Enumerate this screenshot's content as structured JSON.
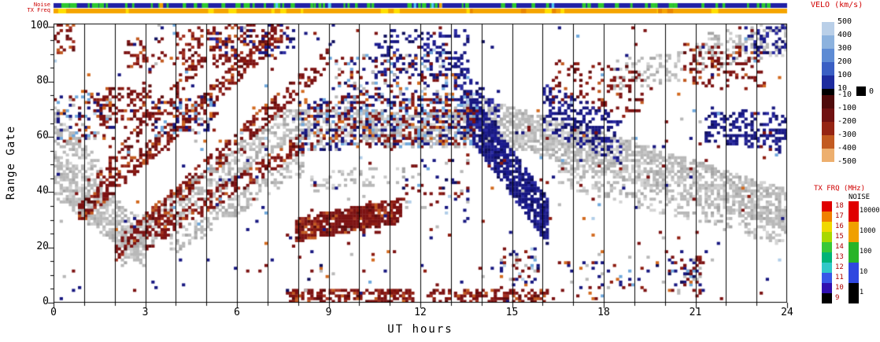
{
  "strips": {
    "noise_label": "Noise",
    "txfreq_label": "TX Freq",
    "noise": {
      "base": "#2020a6",
      "marks": [
        {
          "color": "#2ec82e",
          "count": 80,
          "wmin": 2,
          "wmax": 6
        },
        {
          "color": "#4fc8f0",
          "count": 6,
          "wmin": 2,
          "wmax": 4
        },
        {
          "color": "#f0a000",
          "count": 2,
          "wmin": 3,
          "wmax": 6
        }
      ]
    },
    "txfreq": {
      "base": "#f5a500",
      "marks": [
        {
          "color": "#ffdf00",
          "count": 14,
          "wmin": 3,
          "wmax": 12
        },
        {
          "color": "#e98600",
          "count": 5,
          "wmin": 3,
          "wmax": 9
        }
      ]
    }
  },
  "axes": {
    "x_label": "UT hours",
    "y_label": "Range Gate",
    "x_ticks": [
      0,
      3,
      6,
      9,
      12,
      15,
      18,
      21,
      24
    ],
    "x_tick_labels": [
      "0",
      "3",
      "6",
      "9",
      "12",
      "15",
      "18",
      "21",
      "24"
    ],
    "x_range": [
      0,
      24
    ],
    "y_ticks": [
      0,
      20,
      40,
      60,
      80,
      100
    ],
    "y_tick_labels": [
      "0",
      "20",
      "40",
      "60",
      "80",
      "100"
    ],
    "y_range": [
      0,
      101
    ]
  },
  "colorbars": {
    "velocity": {
      "title": "VELO (km/s)",
      "labels": [
        "500",
        "400",
        "300",
        "200",
        "100",
        "10",
        "-10",
        "-100",
        "-200",
        "-300",
        "-400",
        "-500"
      ],
      "zero_label": "0",
      "zero_box_color": "#000000",
      "pos_segments": [
        "#b9cfe8",
        "#8cb2de",
        "#5d8bd4",
        "#3a5fc4",
        "#1d2b9e"
      ],
      "mid_color": "#000000",
      "neg_segments": [
        "#4f0a0a",
        "#701111",
        "#952413",
        "#c25a20",
        "#edaf6e"
      ]
    },
    "tx_frq": {
      "title": "TX FRQ (MHz)",
      "labels": [
        "18",
        "17",
        "16",
        "15",
        "14",
        "13",
        "12",
        "11",
        "10",
        "9"
      ],
      "label_color": "#b00000",
      "segments": [
        "#e00000",
        "#f08000",
        "#f0d800",
        "#a8d800",
        "#38c838",
        "#00b478",
        "#30c8c8",
        "#3858e8",
        "#3010b0",
        "#000000"
      ]
    },
    "noise": {
      "title": "NOISE",
      "labels": [
        "10000",
        "1000",
        "100",
        "10",
        "1"
      ],
      "label_color": "#000000",
      "segments": [
        "#e00000",
        "#f0a000",
        "#28b428",
        "#3048e0",
        "#000000"
      ]
    }
  },
  "chart_data": {
    "type": "heatmap",
    "title": "",
    "xlabel": "UT hours",
    "ylabel": "Range Gate",
    "xlim": [
      0,
      24
    ],
    "ylim": [
      0,
      101
    ],
    "ground_scatter_color": "#b8b8b8",
    "palette": {
      "gray": [
        "#b8b8b8",
        "#c9c9c9",
        "#a6a6a6",
        "#d4d4d4"
      ],
      "red": [
        "#7c1212",
        "#8e1c10",
        "#5e0c0c",
        "#a33020",
        "#c25a20"
      ],
      "navy": [
        "#171780",
        "#0e0e5c",
        "#2b2ba2",
        "#1a1a90"
      ],
      "mix": [
        "#7c1212",
        "#8e1c10",
        "#171780",
        "#0e0e5c",
        "#6fa8dc",
        "#b0cde8",
        "#d2691e",
        "#b8b8b8"
      ],
      "mix_w": [
        0.26,
        0.08,
        0.24,
        0.06,
        0.12,
        0.06,
        0.08,
        0.1
      ],
      "main_prob": {
        "gray": 0.55,
        "red": 0.6,
        "navy": 0.6
      }
    },
    "features": [
      {
        "t0": 0.0,
        "t1": 3.0,
        "g0": 46,
        "g1": 20,
        "w": 8,
        "d": 0.7,
        "c": "gray"
      },
      {
        "t0": 0.0,
        "t1": 1.6,
        "g0": 64,
        "g1": 42,
        "w": 6,
        "d": 0.45,
        "c": "gray"
      },
      {
        "t0": 2.2,
        "t1": 7.6,
        "g0": 19,
        "g1": 64,
        "w": 6,
        "d": 0.55,
        "c": "gray"
      },
      {
        "t0": 3.8,
        "t1": 8.2,
        "g0": 20,
        "g1": 52,
        "w": 4,
        "d": 0.4,
        "c": "gray"
      },
      {
        "t0": 7.6,
        "t1": 14.2,
        "g0": 63,
        "g1": 62,
        "w": 6,
        "d": 0.45,
        "c": "gray"
      },
      {
        "t0": 14.0,
        "t1": 19.0,
        "g0": 66,
        "g1": 50,
        "w": 7,
        "d": 0.7,
        "c": "gray"
      },
      {
        "t0": 19.0,
        "t1": 24.0,
        "g0": 50,
        "g1": 33,
        "w": 7,
        "d": 0.7,
        "c": "gray"
      },
      {
        "t0": 16.5,
        "t1": 24.0,
        "g0": 46,
        "g1": 24,
        "w": 4,
        "d": 0.35,
        "c": "gray"
      },
      {
        "t0": 8.0,
        "t1": 12.0,
        "g0": 43,
        "g1": 46,
        "w": 3,
        "d": 0.2,
        "c": "gray"
      },
      {
        "t0": 21.0,
        "t1": 24.0,
        "g0": 90,
        "g1": 95,
        "w": 6,
        "d": 0.3,
        "c": "gray"
      },
      {
        "t0": 18.3,
        "t1": 20.6,
        "g0": 82,
        "g1": 85,
        "w": 5,
        "d": 0.28,
        "c": "gray"
      },
      {
        "t0": 0.8,
        "t1": 7.7,
        "g0": 32,
        "g1": 100,
        "w": 3.5,
        "d": 0.5,
        "c": "red"
      },
      {
        "t0": 2.0,
        "t1": 9.0,
        "g0": 18,
        "g1": 88,
        "w": 3.5,
        "d": 0.45,
        "c": "red"
      },
      {
        "t0": 1.3,
        "t1": 4.8,
        "g0": 42,
        "g1": 88,
        "w": 3,
        "d": 0.4,
        "c": "red"
      },
      {
        "t0": 3.0,
        "t1": 8.2,
        "g0": 22,
        "g1": 58,
        "w": 3,
        "d": 0.45,
        "c": "red"
      },
      {
        "t0": 7.9,
        "t1": 11.4,
        "g0": 26,
        "g1": 33,
        "w": 4,
        "d": 0.9,
        "c": "red"
      },
      {
        "t0": 7.6,
        "t1": 11.8,
        "g0": 1,
        "g1": 2,
        "w": 2.5,
        "d": 0.55,
        "c": "red"
      },
      {
        "t0": 12.3,
        "t1": 16.2,
        "g0": 1,
        "g1": 2,
        "w": 2.5,
        "d": 0.45,
        "c": "red"
      },
      {
        "t0": 0.0,
        "t1": 0.7,
        "g0": 95,
        "g1": 96,
        "w": 5,
        "d": 0.45,
        "c": "red"
      },
      {
        "t0": 1.4,
        "t1": 3.2,
        "g0": 70,
        "g1": 73,
        "w": 6,
        "d": 0.4,
        "c": "red"
      },
      {
        "t0": 2.3,
        "t1": 3.7,
        "g0": 89,
        "g1": 91,
        "w": 5,
        "d": 0.22,
        "c": "red"
      },
      {
        "t0": 4.0,
        "t1": 7.2,
        "g0": 91,
        "g1": 94,
        "w": 7,
        "d": 0.28,
        "c": "red"
      },
      {
        "t0": 16.3,
        "t1": 19.3,
        "g0": 80,
        "g1": 76,
        "w": 8,
        "d": 0.18,
        "c": "red"
      },
      {
        "t0": 20.6,
        "t1": 23.2,
        "g0": 86,
        "g1": 84,
        "w": 7,
        "d": 0.25,
        "c": "red"
      },
      {
        "t0": 13.5,
        "t1": 16.2,
        "g0": 68,
        "g1": 28,
        "w": 8,
        "d": 0.85,
        "c": "navy"
      },
      {
        "t0": 13.1,
        "t1": 14.6,
        "g0": 80,
        "g1": 62,
        "w": 8,
        "d": 0.35,
        "c": "navy"
      },
      {
        "t0": 16.0,
        "t1": 18.6,
        "g0": 70,
        "g1": 58,
        "w": 8,
        "d": 0.4,
        "c": "navy"
      },
      {
        "t0": 10.4,
        "t1": 13.6,
        "g0": 90,
        "g1": 90,
        "w": 8,
        "d": 0.25,
        "c": "navy"
      },
      {
        "t0": 21.3,
        "t1": 24.0,
        "g0": 64,
        "g1": 61,
        "w": 6,
        "d": 0.4,
        "c": "navy"
      },
      {
        "t0": 22.6,
        "t1": 24.0,
        "g0": 94,
        "g1": 95,
        "w": 5,
        "d": 0.3,
        "c": "navy"
      },
      {
        "t0": 5.0,
        "t1": 7.9,
        "g0": 92,
        "g1": 96,
        "w": 5,
        "d": 0.15,
        "c": "navy"
      },
      {
        "t0": 8.0,
        "t1": 13.8,
        "g0": 64,
        "g1": 66,
        "w": 9,
        "d": 0.45,
        "c": "mix"
      },
      {
        "t0": 9.0,
        "t1": 13.2,
        "g0": 81,
        "g1": 83,
        "w": 7,
        "d": 0.22,
        "c": "mix"
      },
      {
        "t0": 3.2,
        "t1": 5.3,
        "g0": 66,
        "g1": 68,
        "w": 6,
        "d": 0.3,
        "c": "mix"
      },
      {
        "t0": 0.0,
        "t1": 2.0,
        "g0": 66,
        "g1": 67,
        "w": 8,
        "d": 0.25,
        "c": "mix"
      },
      {
        "t0": 14.6,
        "t1": 15.9,
        "g0": 12,
        "g1": 13,
        "w": 7,
        "d": 0.2,
        "c": "mix"
      },
      {
        "t0": 16.5,
        "t1": 21.3,
        "g0": 8,
        "g1": 9,
        "w": 6,
        "d": 0.1,
        "c": "mix"
      },
      {
        "t0": 20.5,
        "t1": 21.2,
        "g0": 11,
        "g1": 11,
        "w": 5,
        "d": 0.4,
        "c": "mix"
      },
      {
        "t0": 11.4,
        "t1": 13.6,
        "g0": 42,
        "g1": 42,
        "w": 9,
        "d": 0.1,
        "c": "mix"
      },
      {
        "t0": 0.0,
        "t1": 24.0,
        "g0": 50,
        "g1": 50,
        "w": 51,
        "d": 0.015,
        "c": "speck"
      }
    ]
  }
}
